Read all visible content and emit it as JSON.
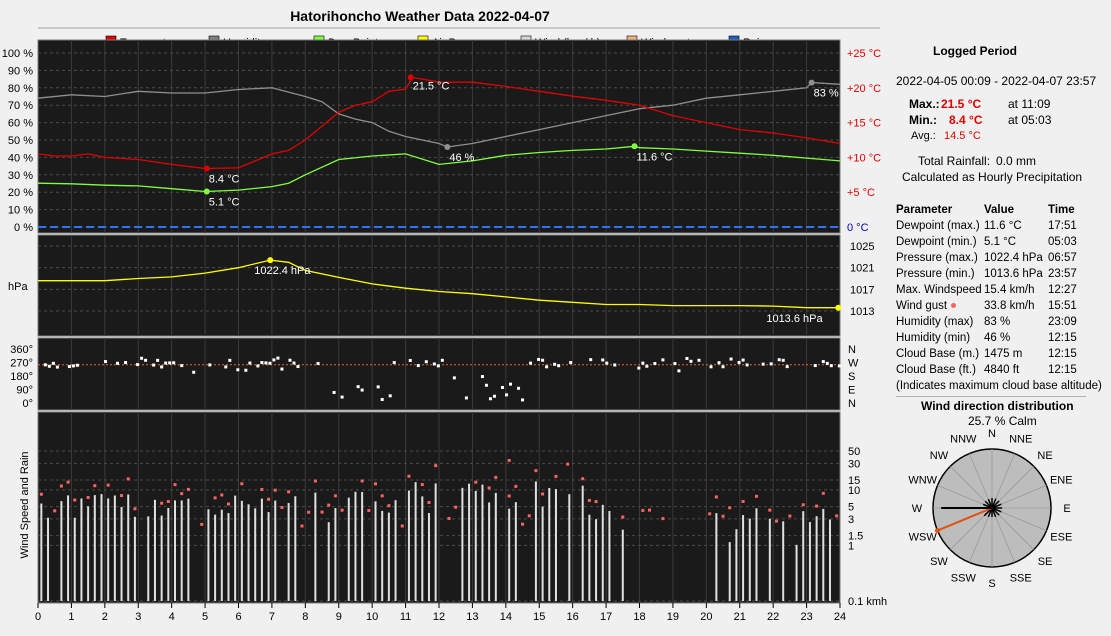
{
  "title": "Hatorihoncho Weather Data 2022-04-07",
  "legend": [
    {
      "label": "Temperature",
      "color": "#e00000"
    },
    {
      "label": "Humidity",
      "color": "#7f7f7f"
    },
    {
      "label": "Dew Point",
      "color": "#80ff40"
    },
    {
      "label": "Air Pressure",
      "color": "#ffff00"
    },
    {
      "label": "Wind (km / h)",
      "color": "#d8d8d8"
    },
    {
      "label": "Wind gusts",
      "color": "#f0b080"
    },
    {
      "label": "Rain",
      "color": "#1f5fbf"
    }
  ],
  "summary": {
    "heading": "Logged Period",
    "period": "2022-04-05 00:09 - 2022-04-07 23:57",
    "max_label": "Max.:",
    "max_value": "21.5 °C",
    "max_time": "at 11:09",
    "min_label": "Min.:",
    "min_value": "8.4 °C",
    "min_time": "at 05:03",
    "avg_label": "Avg.:",
    "avg_value": "14.5 °C",
    "rain_label": "Total Rainfall:",
    "rain_value": "0.0 mm",
    "rain_note": "Calculated as Hourly Precipitation"
  },
  "params": {
    "headers": [
      "Parameter",
      "Value",
      "Time"
    ],
    "rows": [
      [
        "Dewpoint (max.)",
        "11.6 °C",
        "17:51"
      ],
      [
        "Dewpoint (min.)",
        "5.1 °C",
        "05:03"
      ],
      [
        "Pressure (max.)",
        "1022.4 hPa",
        "06:57"
      ],
      [
        "Pressure (min.)",
        "1013.6 hPa",
        "23:57"
      ],
      [
        "Max. Windspeed",
        "15.4 km/h",
        "12:27"
      ],
      [
        "Wind gust",
        "33.8 km/h",
        "15:51"
      ],
      [
        "Humidity (max)",
        "83 %",
        "23:09"
      ],
      [
        "Humidity (min)",
        "46 %",
        "12:15"
      ],
      [
        "Cloud Base (m.)",
        "1475 m",
        "12:15"
      ],
      [
        "Cloud Base (ft.)",
        "4840 ft",
        "12:15"
      ]
    ],
    "note": "(Indicates maximum cloud base altitude)"
  },
  "wind_rose": {
    "heading": "Wind direction distribution",
    "calm": "25.7 % Calm",
    "directions": [
      "N",
      "NNE",
      "NE",
      "ENE",
      "E",
      "ESE",
      "SE",
      "SSE",
      "S",
      "SSW",
      "SW",
      "WSW",
      "W",
      "WNW",
      "NW",
      "NNW"
    ],
    "frequency": [
      0.04,
      0.04,
      0.04,
      0.04,
      0.04,
      0.04,
      0.04,
      0.03,
      0.02,
      0.03,
      0.06,
      0.7,
      1.0,
      0.03,
      0.03,
      0.03
    ],
    "prevailing": "WSW"
  },
  "chart_data": [
    {
      "type": "line",
      "name": "temperature-humidity",
      "x_label_ticks": [
        "0",
        "1",
        "2",
        "3",
        "4",
        "5",
        "6",
        "7",
        "8",
        "9",
        "10",
        "11",
        "12",
        "13",
        "14",
        "15",
        "16",
        "17",
        "18",
        "19",
        "20",
        "21",
        "22",
        "23",
        "24"
      ],
      "left_ticks": [
        "100 %",
        "90 %",
        "80 %",
        "70 %",
        "60 %",
        "50 %",
        "40 %",
        "30 %",
        "20 %",
        "10 %",
        "0 %"
      ],
      "right_ticks": [
        "+25 °C",
        "+20 °C",
        "+15 °C",
        "+10 °C",
        "+5 °C",
        "0 °C"
      ],
      "series": [
        {
          "name": "Temperature",
          "color": "#e00000",
          "x": [
            0,
            0.5,
            1,
            1.5,
            2,
            3,
            4,
            5,
            6,
            6.5,
            7,
            7.5,
            8,
            8.5,
            9,
            9.5,
            10,
            10.5,
            11,
            11.2,
            12,
            13,
            14,
            15,
            16,
            17,
            18,
            19,
            20,
            21,
            22,
            23,
            24
          ],
          "y": [
            10.5,
            10.2,
            10.2,
            10.5,
            10.0,
            9.7,
            9.0,
            8.4,
            8.5,
            9.5,
            10.5,
            11.0,
            12.5,
            14.5,
            16.5,
            17.5,
            18.0,
            19.5,
            19.8,
            21.5,
            20.8,
            20.8,
            20.2,
            19.5,
            18.8,
            18.2,
            17.5,
            16.0,
            15.0,
            14.0,
            13.5,
            12.8,
            12.0
          ],
          "labels": [
            {
              "x": 5.05,
              "y": 8.4,
              "text": "8.4 °C"
            },
            {
              "x": 11.15,
              "y": 21.5,
              "text": "21.5 °C"
            }
          ]
        },
        {
          "name": "Humidity",
          "color": "#8f8f8f",
          "x": [
            0,
            1,
            2,
            3,
            4,
            5,
            6,
            7,
            8,
            8.5,
            9,
            9.5,
            10,
            10.5,
            11,
            11.5,
            12,
            12.25,
            13,
            14,
            15,
            16,
            17,
            18,
            19,
            20,
            21,
            22,
            23,
            23.15,
            24
          ],
          "y": [
            74,
            76,
            75,
            78,
            77,
            77,
            79,
            80,
            75,
            72,
            65,
            62,
            60,
            55,
            52,
            50,
            48,
            46,
            48,
            52,
            56,
            60,
            64,
            68,
            70,
            74,
            76,
            78,
            80,
            83,
            82
          ],
          "labels": [
            {
              "x": 12.25,
              "y": 46,
              "text": "46 %"
            },
            {
              "x": 23.15,
              "y": 83,
              "text": "83 %"
            }
          ]
        },
        {
          "name": "Dew Point",
          "color": "#80ff40",
          "x": [
            0,
            1,
            2,
            3,
            4,
            5,
            6,
            7,
            7.5,
            8,
            9,
            10,
            11,
            12,
            13,
            14,
            15,
            16,
            17,
            17.85,
            18,
            19,
            20,
            21,
            22,
            23,
            24
          ],
          "y": [
            6.3,
            6.2,
            6.0,
            5.9,
            5.5,
            5.1,
            5.3,
            5.8,
            6.3,
            7.5,
            9.7,
            10.2,
            10.5,
            9.0,
            9.5,
            10.3,
            10.7,
            11.0,
            11.2,
            11.6,
            11.4,
            11.2,
            10.9,
            10.6,
            10.3,
            9.9,
            9.5
          ],
          "labels": [
            {
              "x": 5.05,
              "y": 5.1,
              "text": "5.1 °C"
            },
            {
              "x": 17.85,
              "y": 11.6,
              "text": "11.6 °C"
            }
          ]
        }
      ]
    },
    {
      "type": "line",
      "name": "pressure",
      "y_label": "hPa",
      "right_ticks": [
        "1025",
        "1021",
        "1017",
        "1013"
      ],
      "series": [
        {
          "name": "Air Pressure",
          "color": "#ffff00",
          "x": [
            0,
            1,
            2,
            3,
            4,
            5,
            6,
            6.95,
            7.5,
            8,
            9,
            10,
            11,
            12,
            13,
            14,
            15,
            16,
            17,
            18,
            19,
            20,
            21,
            22,
            23,
            24
          ],
          "y": [
            1018.6,
            1018.6,
            1018.6,
            1019.0,
            1019.3,
            1020.0,
            1021.0,
            1022.4,
            1022.0,
            1020.5,
            1019.2,
            1018.0,
            1017.2,
            1016.6,
            1016.2,
            1015.6,
            1015.0,
            1014.6,
            1014.2,
            1014.2,
            1014.0,
            1014.0,
            1014.0,
            1013.9,
            1013.6,
            1013.6
          ],
          "labels": [
            {
              "x": 6.95,
              "y": 1022.4,
              "text": "1022.4 hPa"
            },
            {
              "x": 23.95,
              "y": 1013.6,
              "text": "1013.6 hPa"
            }
          ]
        }
      ]
    },
    {
      "type": "scatter",
      "name": "wind-direction",
      "left_ticks": [
        "360°",
        "270°",
        "180°",
        "90°",
        "0°"
      ],
      "right_ticks": [
        "N",
        "W",
        "S",
        "E",
        "N"
      ],
      "series": [
        {
          "name": "Wind direction",
          "color": "#ffffff",
          "prevailing_deg": 255
        }
      ]
    },
    {
      "type": "bar",
      "name": "wind-speed",
      "y_label": "Wind Speed and Rain",
      "right_ticks": [
        "50",
        "30",
        "15",
        "10",
        "5",
        "3",
        "1.5",
        "1",
        "0.1 kmh"
      ],
      "log_scale": true,
      "series": [
        {
          "name": "Wind (km / h)",
          "color": "#d8d8d8"
        },
        {
          "name": "Wind gusts",
          "color": "#ff6060"
        }
      ]
    }
  ]
}
